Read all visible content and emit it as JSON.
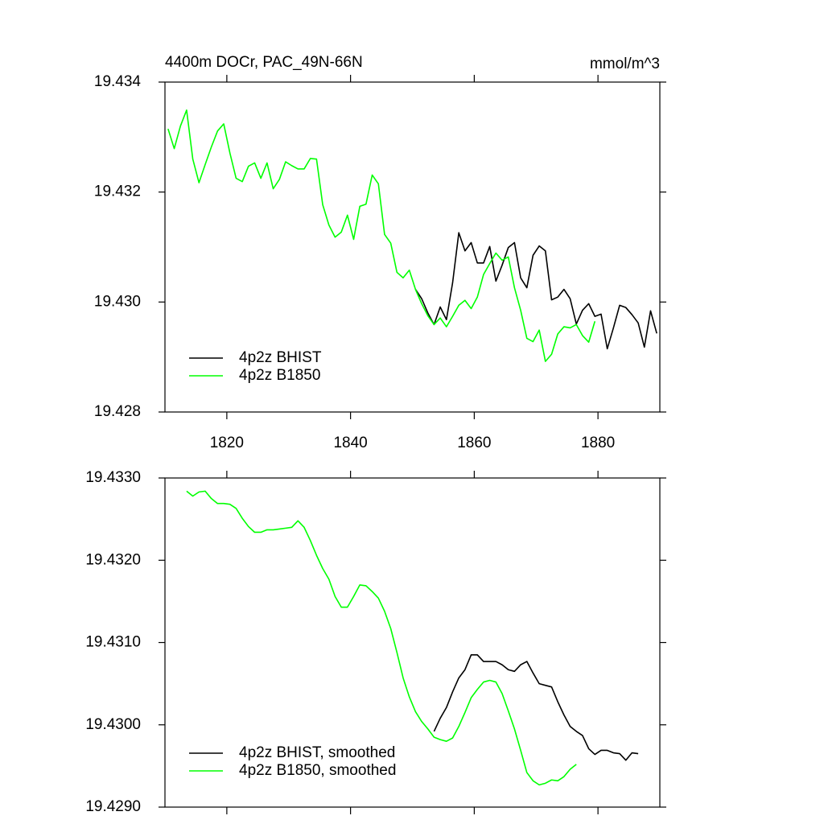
{
  "chart_data": [
    {
      "type": "line",
      "title": "4400m DOCr, PAC_49N-66N",
      "units": "mmol/m^3",
      "xlim": [
        1810,
        1890
      ],
      "xticks": [
        1820,
        1840,
        1860,
        1880
      ],
      "ylim": [
        19.428,
        19.434
      ],
      "yticks": [
        19.428,
        {
          "value": 19.43,
          "label": "19.430"
        },
        19.432,
        19.434
      ],
      "legend": "lower left",
      "series": [
        {
          "name": "4p2z BHIST",
          "color": "#000000",
          "x": [
            1850.5,
            1851.5,
            1852.5,
            1853.5,
            1854.5,
            1855.5,
            1856.5,
            1857.5,
            1858.5,
            1859.5,
            1860.5,
            1861.5,
            1862.5,
            1863.5,
            1864.5,
            1865.5,
            1866.5,
            1867.5,
            1868.5,
            1869.5,
            1870.5,
            1871.5,
            1872.5,
            1873.5,
            1874.5,
            1875.5,
            1876.5,
            1877.5,
            1878.5,
            1879.5,
            1880.5,
            1881.5,
            1882.5,
            1883.5,
            1884.5,
            1885.5,
            1886.5,
            1887.5,
            1888.5,
            1889.5
          ],
          "values": [
            19.43023,
            19.43006,
            19.4298,
            19.42959,
            19.42991,
            19.42968,
            19.43035,
            19.43126,
            19.43093,
            19.43108,
            19.43071,
            19.43071,
            19.43101,
            19.43038,
            19.43067,
            19.43099,
            19.43108,
            19.43044,
            19.43026,
            19.43085,
            19.43102,
            19.43093,
            19.43004,
            19.43009,
            19.43023,
            19.43006,
            19.4296,
            19.42985,
            19.42997,
            19.42974,
            19.42978,
            19.42915,
            19.42953,
            19.42994,
            19.4299,
            19.42977,
            19.42962,
            19.42918,
            19.42984,
            19.42943
          ]
        },
        {
          "name": "4p2z B1850",
          "color": "#00ff00",
          "x": [
            1810.5,
            1811.5,
            1812.5,
            1813.5,
            1814.5,
            1815.5,
            1816.5,
            1817.5,
            1818.5,
            1819.5,
            1820.5,
            1821.5,
            1822.5,
            1823.5,
            1824.5,
            1825.5,
            1826.5,
            1827.5,
            1828.5,
            1829.5,
            1830.5,
            1831.5,
            1832.5,
            1833.5,
            1834.5,
            1835.5,
            1836.5,
            1837.5,
            1838.5,
            1839.5,
            1840.5,
            1841.5,
            1842.5,
            1843.5,
            1844.5,
            1845.5,
            1846.5,
            1847.5,
            1848.5,
            1849.5,
            1850.5,
            1851.5,
            1852.5,
            1853.5,
            1854.5,
            1855.5,
            1856.5,
            1857.5,
            1858.5,
            1859.5,
            1860.5,
            1861.5,
            1862.5,
            1863.5,
            1864.5,
            1865.5,
            1866.5,
            1867.5,
            1868.5,
            1869.5,
            1870.5,
            1871.5,
            1872.5,
            1873.5,
            1874.5,
            1875.5,
            1876.5,
            1877.5,
            1878.5,
            1879.5
          ],
          "values": [
            19.43315,
            19.43279,
            19.4332,
            19.43349,
            19.4326,
            19.43217,
            19.4325,
            19.43282,
            19.43311,
            19.43324,
            19.43271,
            19.43225,
            19.43219,
            19.43247,
            19.43253,
            19.43225,
            19.43253,
            19.43206,
            19.43223,
            19.43255,
            19.43248,
            19.43242,
            19.43242,
            19.43261,
            19.4326,
            19.43177,
            19.4314,
            19.43118,
            19.43127,
            19.43158,
            19.43114,
            19.43174,
            19.43178,
            19.43231,
            19.43215,
            19.43123,
            19.43107,
            19.43054,
            19.43044,
            19.43058,
            19.43023,
            19.42997,
            19.42975,
            19.42959,
            19.42971,
            19.42955,
            19.42974,
            19.42994,
            19.43003,
            19.42988,
            19.43009,
            19.4305,
            19.4307,
            19.43089,
            19.43076,
            19.43082,
            19.43026,
            19.42985,
            19.42934,
            19.42928,
            19.42949,
            19.42892,
            19.42905,
            19.42942,
            19.42955,
            19.42953,
            19.42959,
            19.42939,
            19.42927,
            19.42965
          ]
        }
      ]
    },
    {
      "type": "line",
      "xlim": [
        1810,
        1890
      ],
      "xticks": [
        1820,
        1840,
        1860,
        1880
      ],
      "xticklabels": false,
      "ylim": [
        19.429,
        19.433
      ],
      "yticks": [
        {
          "value": 19.429,
          "label": "19.4290"
        },
        {
          "value": 19.43,
          "label": "19.4300"
        },
        {
          "value": 19.431,
          "label": "19.4310"
        },
        {
          "value": 19.432,
          "label": "19.4320"
        },
        {
          "value": 19.433,
          "label": "19.4330"
        }
      ],
      "legend": "lower left",
      "series": [
        {
          "name": "4p2z BHIST, smoothed",
          "color": "#000000",
          "x": [
            1853.5,
            1854.5,
            1855.5,
            1856.5,
            1857.5,
            1858.5,
            1859.5,
            1860.5,
            1861.5,
            1862.5,
            1863.5,
            1864.5,
            1865.5,
            1866.5,
            1867.5,
            1868.5,
            1869.5,
            1870.5,
            1871.5,
            1872.5,
            1873.5,
            1874.5,
            1875.5,
            1876.5,
            1877.5,
            1878.5,
            1879.5,
            1880.5,
            1881.5,
            1882.5,
            1883.5,
            1884.5,
            1885.5,
            1886.5
          ],
          "values": [
            19.42992,
            19.43008,
            19.43021,
            19.4304,
            19.43057,
            19.43067,
            19.43085,
            19.43085,
            19.43077,
            19.43077,
            19.43077,
            19.43073,
            19.43067,
            19.43065,
            19.43073,
            19.43077,
            19.43063,
            19.4305,
            19.43048,
            19.43046,
            19.43028,
            19.43012,
            19.42998,
            19.42992,
            19.42987,
            19.42971,
            19.42964,
            19.42969,
            19.42969,
            19.42966,
            19.42965,
            19.42957,
            19.42966,
            19.42965
          ]
        },
        {
          "name": "4p2z B1850, smoothed",
          "color": "#00ff00",
          "x": [
            1813.5,
            1814.5,
            1815.5,
            1816.5,
            1817.5,
            1818.5,
            1819.5,
            1820.5,
            1821.5,
            1822.5,
            1823.5,
            1824.5,
            1825.5,
            1826.5,
            1827.5,
            1828.5,
            1829.5,
            1830.5,
            1831.5,
            1832.5,
            1833.5,
            1834.5,
            1835.5,
            1836.5,
            1837.5,
            1838.5,
            1839.5,
            1840.5,
            1841.5,
            1842.5,
            1843.5,
            1844.5,
            1845.5,
            1846.5,
            1847.5,
            1848.5,
            1849.5,
            1850.5,
            1851.5,
            1852.5,
            1853.5,
            1854.5,
            1855.5,
            1856.5,
            1857.5,
            1858.5,
            1859.5,
            1860.5,
            1861.5,
            1862.5,
            1863.5,
            1864.5,
            1865.5,
            1866.5,
            1867.5,
            1868.5,
            1869.5,
            1870.5,
            1871.5,
            1872.5,
            1873.5,
            1874.5,
            1875.5,
            1876.5
          ],
          "values": [
            19.43284,
            19.43278,
            19.43283,
            19.43284,
            19.43275,
            19.43269,
            19.43269,
            19.43268,
            19.43263,
            19.43251,
            19.43241,
            19.43234,
            19.43234,
            19.43237,
            19.43237,
            19.43238,
            19.43239,
            19.4324,
            19.43248,
            19.4324,
            19.43224,
            19.43206,
            19.4319,
            19.43177,
            19.43156,
            19.43143,
            19.43143,
            19.43156,
            19.4317,
            19.43169,
            19.43162,
            19.43154,
            19.43138,
            19.43117,
            19.43088,
            19.43057,
            19.43034,
            19.43016,
            19.43004,
            19.42995,
            19.42985,
            19.42982,
            19.4298,
            19.42984,
            19.42998,
            19.43015,
            19.43033,
            19.43043,
            19.43052,
            19.43054,
            19.43052,
            19.43038,
            19.43017,
            19.42995,
            19.42969,
            19.42942,
            19.42932,
            19.42927,
            19.42929,
            19.42933,
            19.42932,
            19.42937,
            19.42946,
            19.42952
          ]
        }
      ]
    }
  ]
}
